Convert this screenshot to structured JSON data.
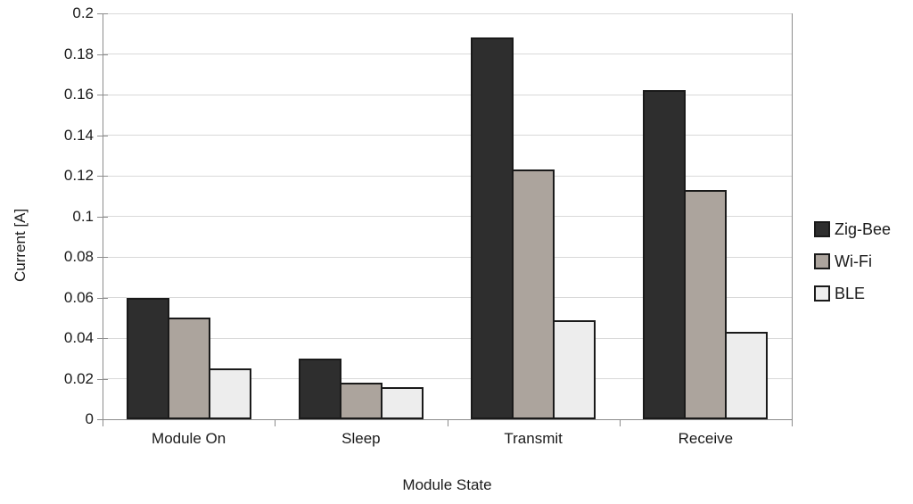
{
  "chart_data": {
    "type": "bar",
    "title": "",
    "xlabel": "Module State",
    "ylabel": "Current [A]",
    "categories": [
      "Module On",
      "Sleep",
      "Transmit",
      "Receive"
    ],
    "series": [
      {
        "name": "Zig-Bee",
        "color": "#2e2e2e",
        "values": [
          0.06,
          0.03,
          0.188,
          0.162
        ]
      },
      {
        "name": "Wi-Fi",
        "color": "#aca49d",
        "values": [
          0.05,
          0.018,
          0.123,
          0.113
        ]
      },
      {
        "name": "BLE",
        "color": "#ededed",
        "values": [
          0.025,
          0.016,
          0.049,
          0.043
        ]
      }
    ],
    "ylim": [
      0,
      0.2
    ],
    "ytick_step": 0.02,
    "ytick_labels": [
      "0",
      "0.02",
      "0.04",
      "0.06",
      "0.08",
      "0.1",
      "0.12",
      "0.14",
      "0.16",
      "0.18",
      "0.2"
    ],
    "grid": true,
    "legend_position": "right"
  },
  "colors": {
    "background": "#ffffff",
    "text": "#1a1a1a",
    "axis": "#8c8c8c",
    "grid": "#d9d9d9",
    "bar_border": "#1a1a1a"
  }
}
